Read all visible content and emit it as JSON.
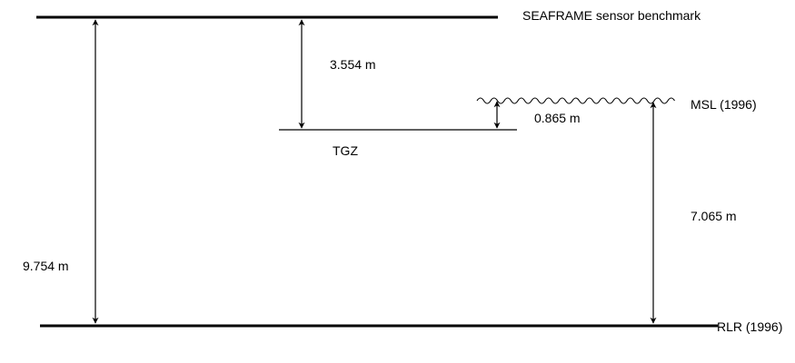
{
  "levels": {
    "benchmark": "SEAFRAME sensor benchmark",
    "msl": "MSL (1996)",
    "tgz": "TGZ",
    "rlr": "RLR (1996)"
  },
  "distances": {
    "benchmark_to_rlr": "9.754 m",
    "benchmark_to_tgz": "3.554 m",
    "tgz_to_msl": "0.865 m",
    "msl_to_rlr": "7.065 m"
  },
  "colors": {
    "line": "#000000",
    "background": "#ffffff"
  }
}
